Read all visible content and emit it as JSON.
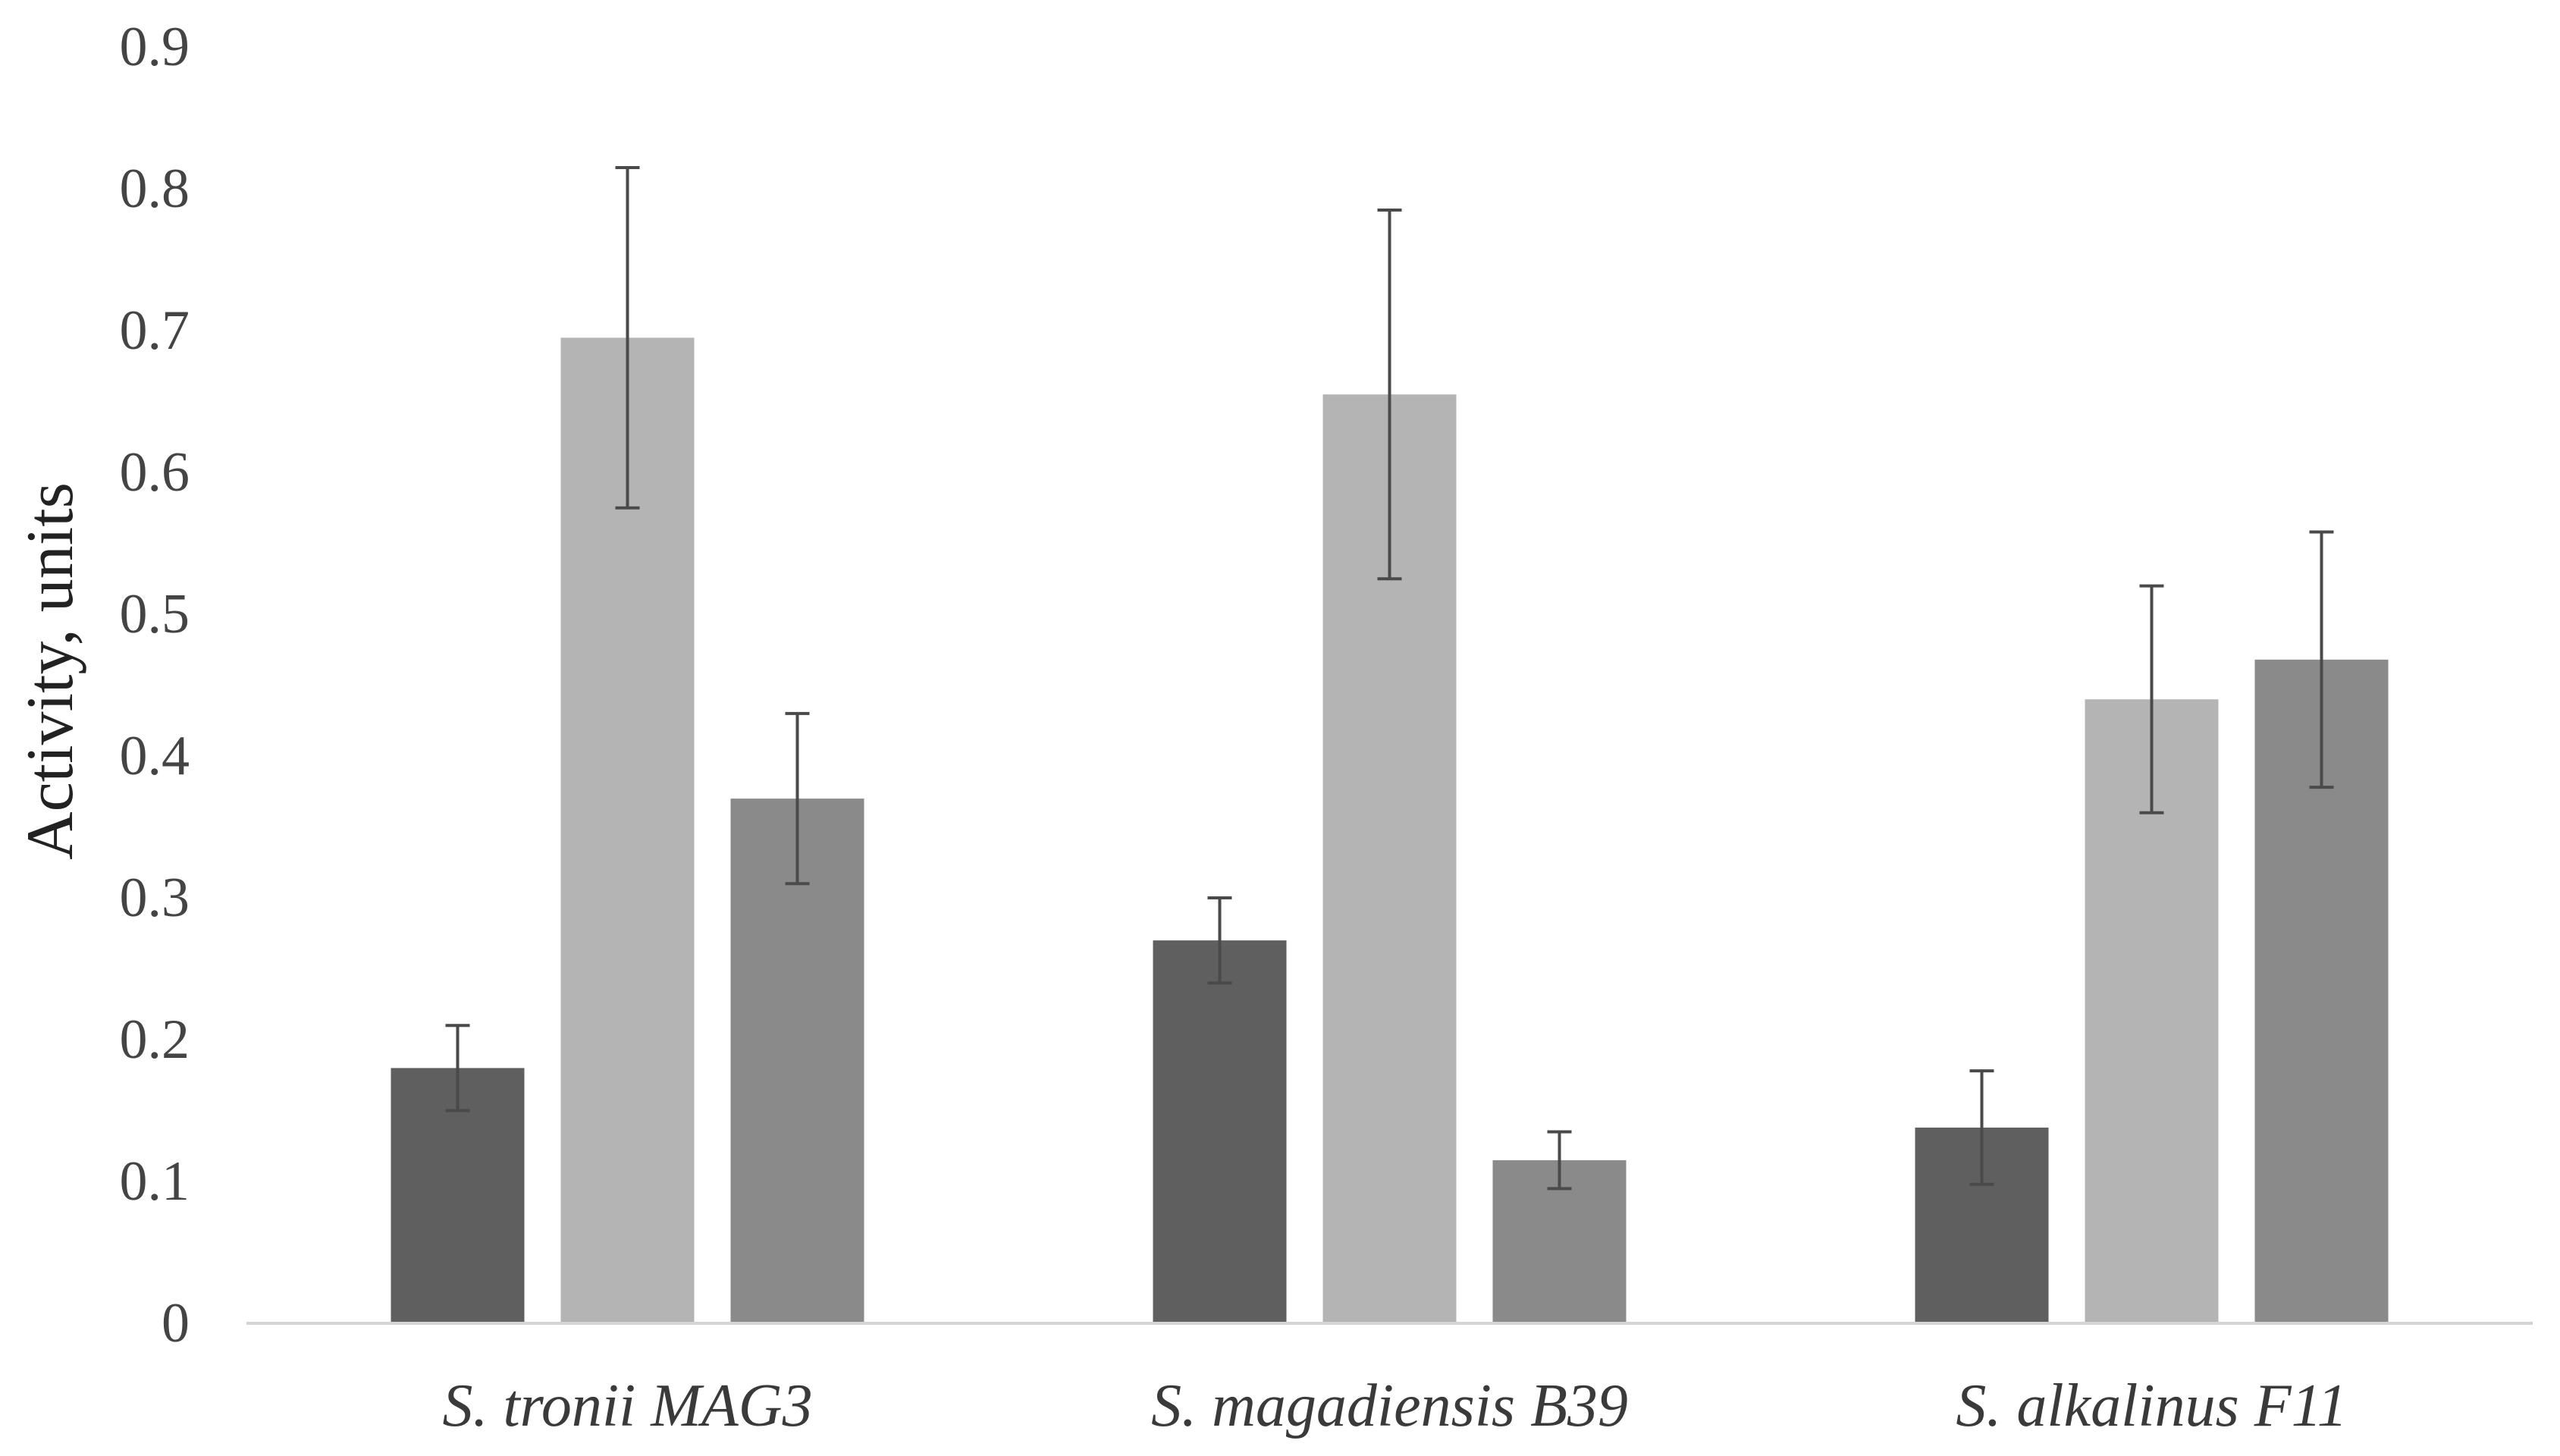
{
  "chart_data": {
    "type": "bar",
    "title": "",
    "xlabel": "",
    "ylabel": "Activity, units",
    "ylim": [
      0,
      0.9
    ],
    "yticks": [
      "0",
      "0.1",
      "0.2",
      "0.3",
      "0.4",
      "0.5",
      "0.6",
      "0.7",
      "0.8",
      "0.9"
    ],
    "grid": false,
    "legend": "none",
    "categories": [
      "S. tronii MAG3",
      "S. magadiensis B39",
      "S. alkalinus F11"
    ],
    "series": [
      {
        "name": "series-1",
        "color": "#5f5f5f",
        "values": [
          0.18,
          0.27,
          0.138
        ],
        "errors": [
          0.03,
          0.03,
          0.04
        ]
      },
      {
        "name": "series-2",
        "color": "#b4b4b4",
        "values": [
          0.695,
          0.655,
          0.44
        ],
        "errors": [
          0.12,
          0.13,
          0.08
        ]
      },
      {
        "name": "series-3",
        "color": "#8a8a8a",
        "values": [
          0.37,
          0.115,
          0.468
        ],
        "errors": [
          0.06,
          0.02,
          0.09
        ]
      }
    ]
  }
}
